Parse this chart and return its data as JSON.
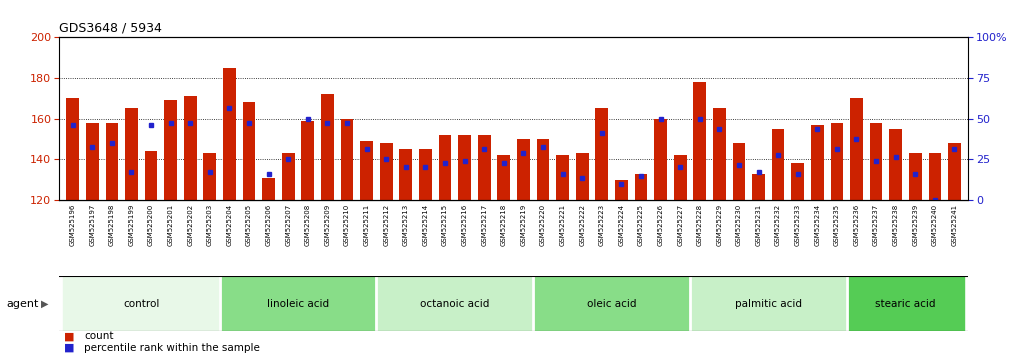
{
  "title": "GDS3648 / 5934",
  "ylim_left": [
    120,
    200
  ],
  "yticks_left": [
    120,
    140,
    160,
    180,
    200
  ],
  "ylim_right": [
    0,
    100
  ],
  "yticks_right": [
    0,
    25,
    50,
    75,
    100
  ],
  "yticklabels_right": [
    "0",
    "25",
    "50",
    "75",
    "100%"
  ],
  "bar_color": "#CC2200",
  "dot_color": "#2222CC",
  "groups": [
    {
      "name": "control",
      "color": "#E8F8E8",
      "samples": [
        "GSM525196",
        "GSM525197",
        "GSM525198",
        "GSM525199",
        "GSM525200",
        "GSM525201",
        "GSM525202",
        "GSM525203"
      ]
    },
    {
      "name": "linoleic acid",
      "color": "#88DD88",
      "samples": [
        "GSM525204",
        "GSM525205",
        "GSM525206",
        "GSM525207",
        "GSM525208",
        "GSM525209",
        "GSM525210",
        "GSM525211"
      ]
    },
    {
      "name": "octanoic acid",
      "color": "#C8F0C8",
      "samples": [
        "GSM525212",
        "GSM525213",
        "GSM525214",
        "GSM525215",
        "GSM525216",
        "GSM525217",
        "GSM525218",
        "GSM525219"
      ]
    },
    {
      "name": "oleic acid",
      "color": "#88DD88",
      "samples": [
        "GSM525220",
        "GSM525221",
        "GSM525222",
        "GSM525223",
        "GSM525224",
        "GSM525225",
        "GSM525226",
        "GSM525227"
      ]
    },
    {
      "name": "palmitic acid",
      "color": "#C8F0C8",
      "samples": [
        "GSM525228",
        "GSM525229",
        "GSM525230",
        "GSM525231",
        "GSM525232",
        "GSM525233",
        "GSM525234",
        "GSM525235"
      ]
    },
    {
      "name": "stearic acid",
      "color": "#55CC55",
      "samples": [
        "GSM525236",
        "GSM525237",
        "GSM525238",
        "GSM525239",
        "GSM525240",
        "GSM525241"
      ]
    }
  ],
  "bar_heights": [
    170,
    158,
    158,
    165,
    144,
    169,
    171,
    143,
    185,
    168,
    131,
    143,
    159,
    172,
    160,
    149,
    148,
    145,
    145,
    152,
    152,
    152,
    142,
    150,
    150,
    142,
    143,
    165,
    130,
    133,
    160,
    142,
    178,
    165,
    148,
    133,
    155,
    138,
    157,
    158,
    170,
    158,
    155,
    143,
    143,
    148
  ],
  "dot_heights": [
    157,
    146,
    148,
    134,
    157,
    158,
    158,
    134,
    165,
    158,
    133,
    140,
    160,
    158,
    158,
    145,
    140,
    136,
    136,
    138,
    139,
    145,
    138,
    143,
    146,
    133,
    131,
    153,
    128,
    132,
    160,
    136,
    160,
    155,
    137,
    134,
    142,
    133,
    155,
    145,
    150,
    139,
    141,
    133,
    120,
    145
  ],
  "xtick_bg_color": "#C8C8C8",
  "group_border_color": "#000000",
  "legend_count_color": "#CC2200",
  "legend_dot_color": "#2222CC",
  "agent_label": "agent"
}
